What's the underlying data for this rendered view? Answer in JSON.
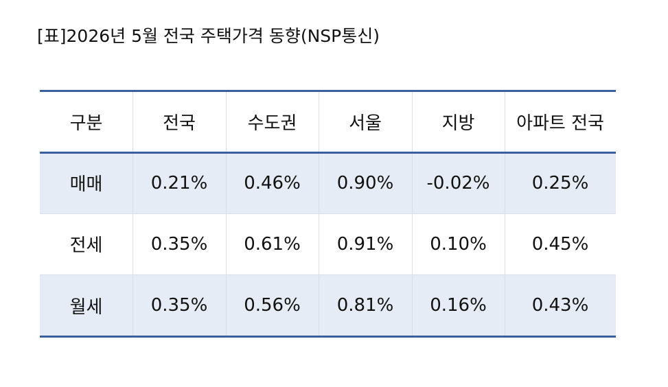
{
  "header": {
    "title": "[표]2026년 5월 전국 주택가격 동향(NSP통신)"
  },
  "table": {
    "header": [
      "구분",
      "전국",
      "수도권",
      "서울",
      "지방",
      "아파트 전국"
    ],
    "rows": [
      [
        "매매",
        "0.21%",
        "0.46%",
        "0.90%",
        "-0.02%",
        "0.25%"
      ],
      [
        "전세",
        "0.35%",
        "0.61%",
        "0.91%",
        "0.10%",
        "0.45%"
      ],
      [
        "월세",
        "0.35%",
        "0.56%",
        "0.81%",
        "0.16%",
        "0.43%"
      ]
    ]
  }
}
